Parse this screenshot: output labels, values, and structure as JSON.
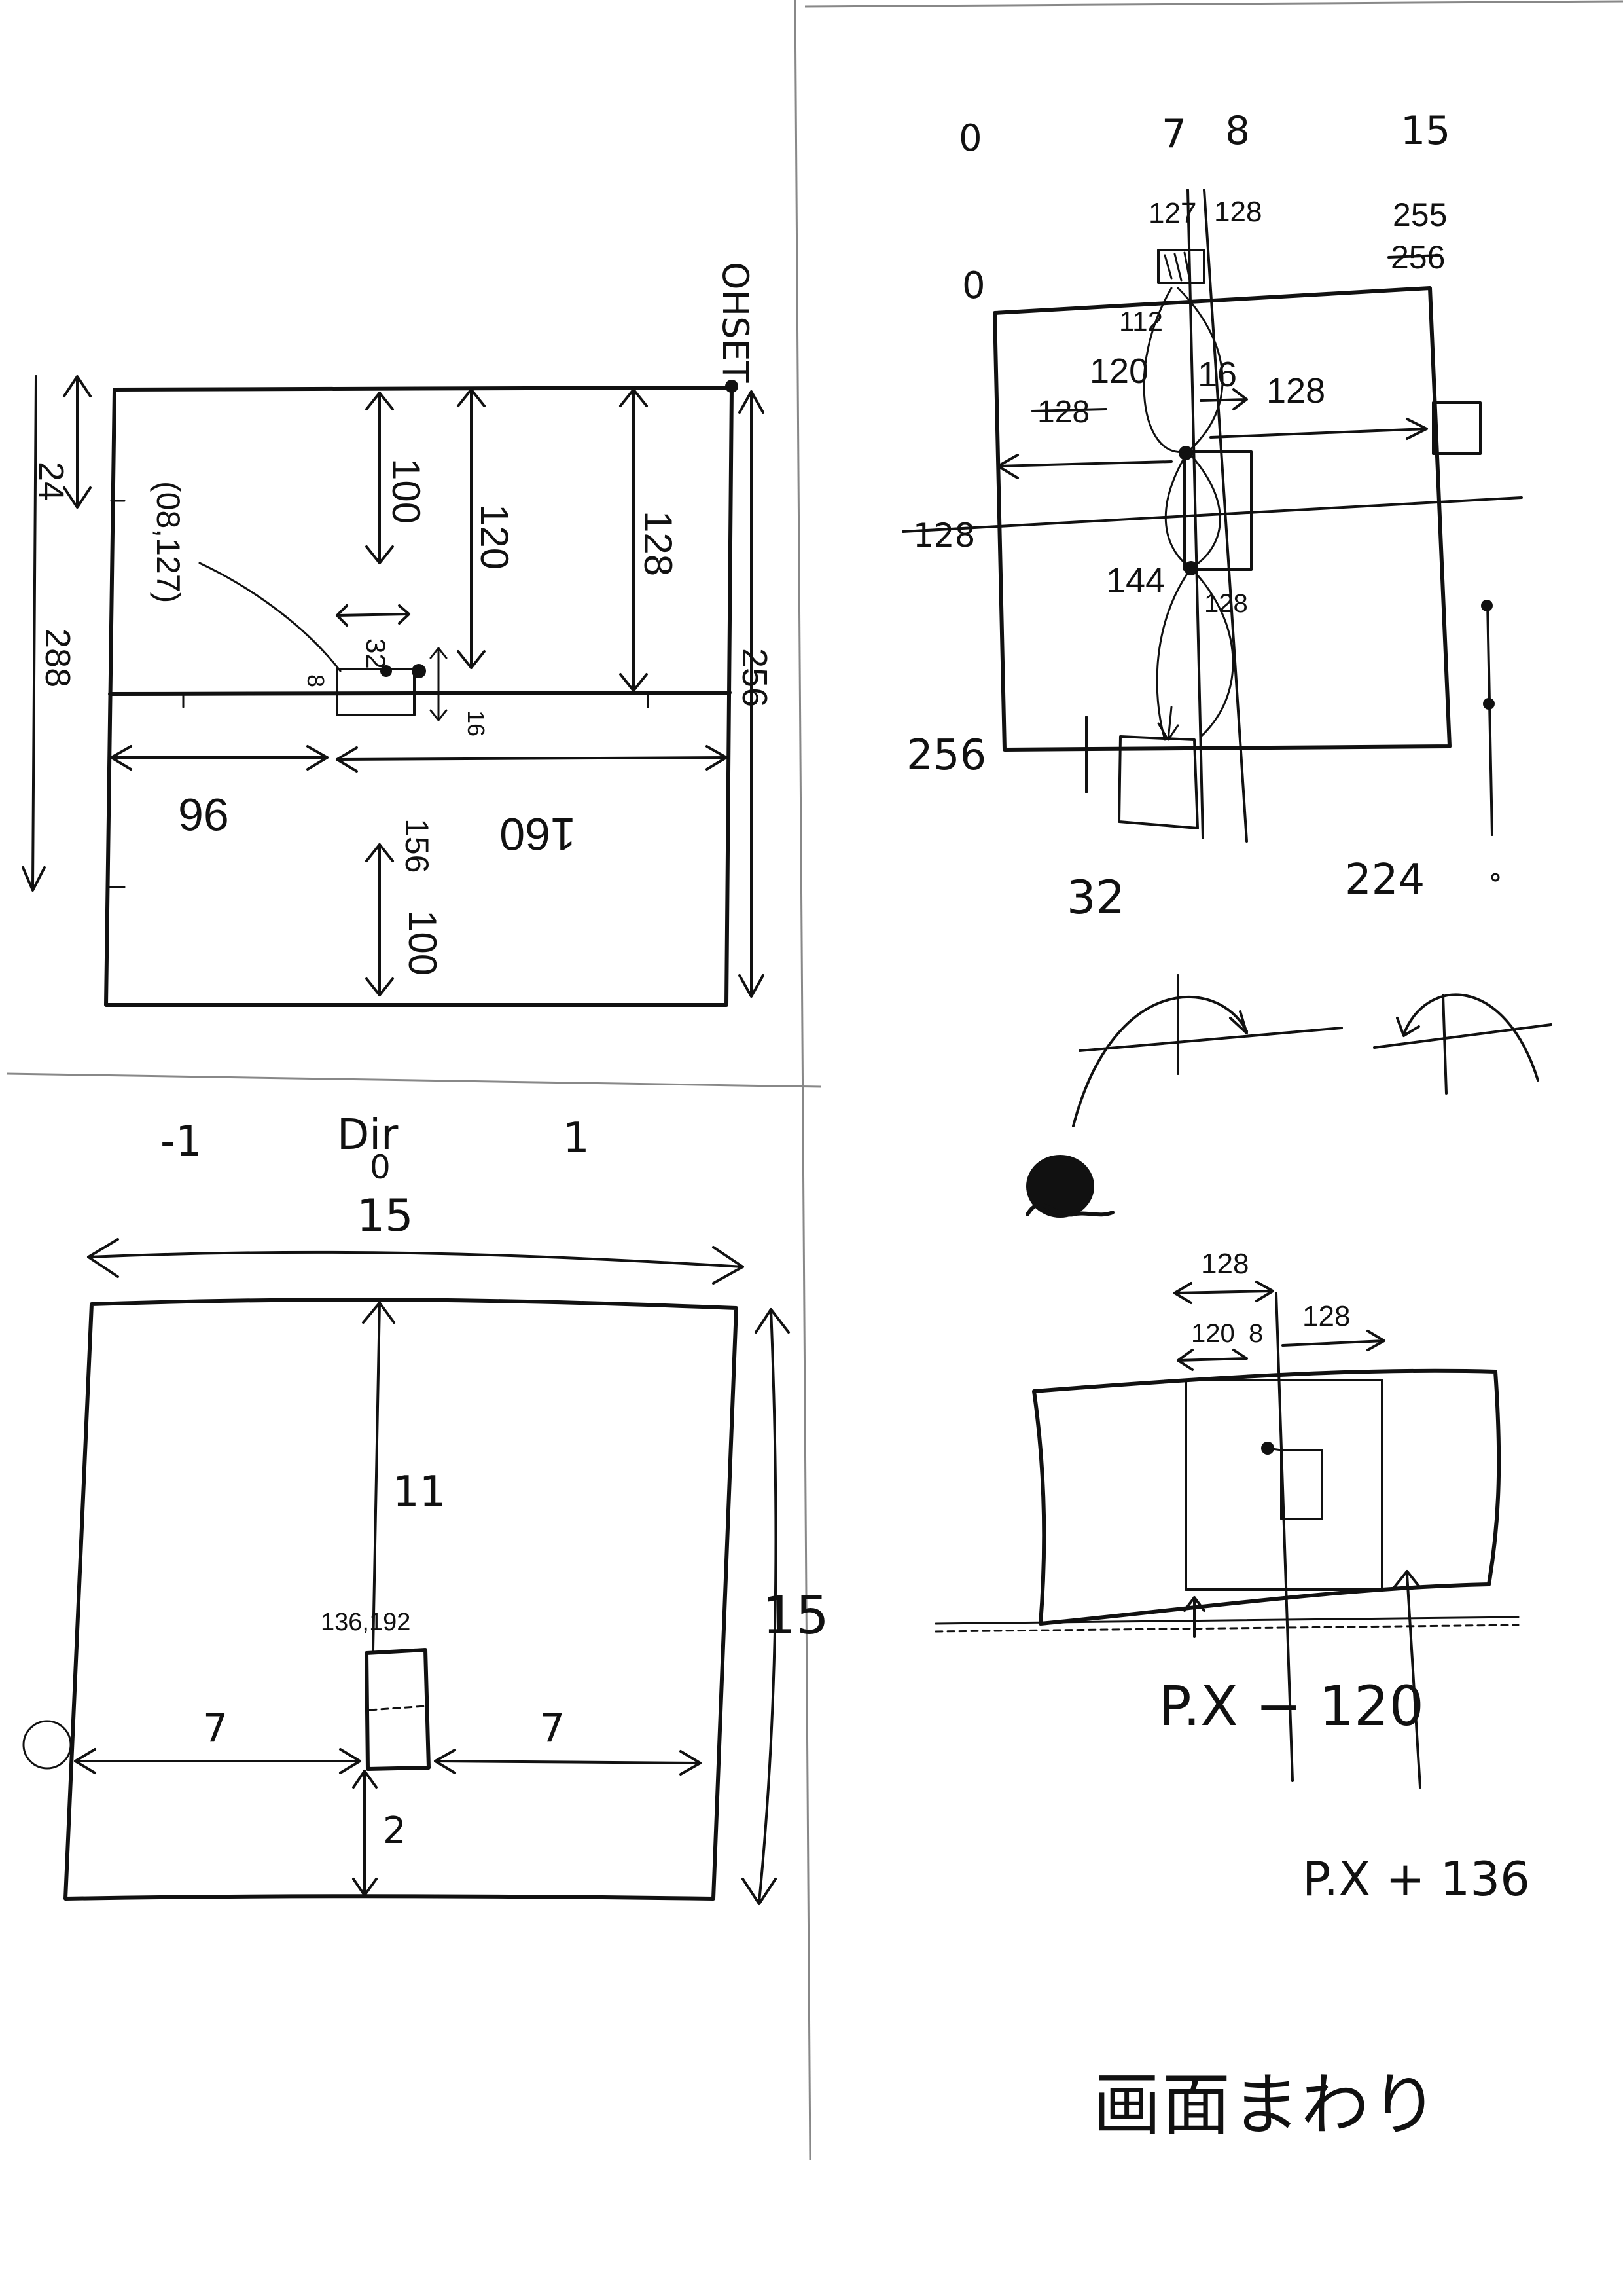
{
  "caption": "画面まわり",
  "panel_top_left": {
    "corner_label": "OHSET",
    "coord_label": "(08,127)",
    "dims": [
      "24",
      "288",
      "100",
      "120",
      "128",
      "32",
      "8",
      "16",
      "256",
      "96",
      "160",
      "156",
      "100"
    ]
  },
  "panel_top_right": {
    "cols": [
      "0",
      "7",
      "8",
      "15"
    ],
    "top_values": [
      "127",
      "128",
      "255",
      "256"
    ],
    "row_labels": [
      "0",
      "128",
      "256"
    ],
    "inner": [
      "112",
      "120",
      "16",
      "128",
      "128",
      "144",
      "128"
    ],
    "bottom": [
      "32",
      "224"
    ]
  },
  "panel_bottom_left": {
    "dir_title": "Dir",
    "dir_values": [
      "-1",
      "0",
      "1"
    ],
    "dims": [
      "15",
      "15",
      "11",
      "7",
      "7",
      "2"
    ],
    "point": "136,192"
  },
  "panel_bottom_right": {
    "dims": [
      "128",
      "120",
      "8",
      "128"
    ],
    "formulas": [
      "P.X − 120",
      "P.X + 136"
    ]
  }
}
